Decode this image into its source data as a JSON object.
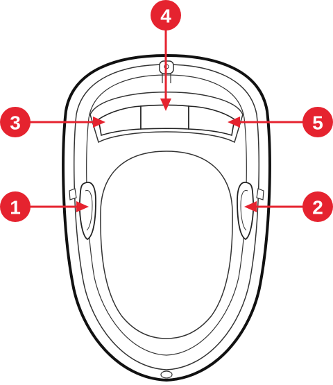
{
  "diagram": {
    "colors": {
      "callout": "#e5232f",
      "outline": "#111111",
      "detail": "#333333",
      "body_fill": "#ffffff"
    },
    "callouts": [
      {
        "id": "1",
        "label": "1",
        "target": "left-side-button"
      },
      {
        "id": "2",
        "label": "2",
        "target": "right-side-button"
      },
      {
        "id": "3",
        "label": "3",
        "target": "left-front-button"
      },
      {
        "id": "4",
        "label": "4",
        "target": "center-front-button"
      },
      {
        "id": "5",
        "label": "5",
        "target": "right-front-button"
      }
    ]
  }
}
